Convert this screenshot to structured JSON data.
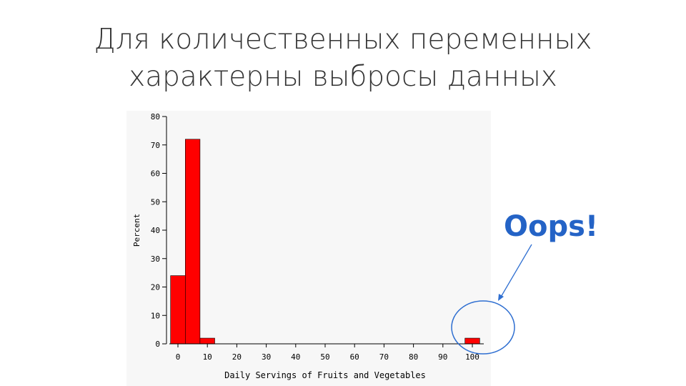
{
  "slide": {
    "title_line1": "Для количественных переменных",
    "title_line2": "характерны выбросы данных"
  },
  "callout": {
    "text": "Oops!",
    "color": "#2463c6"
  },
  "chart_data": {
    "type": "bar",
    "xlabel": "Daily Servings of Fruits and Vegetables",
    "ylabel": "Percent",
    "xlim": [
      -5,
      105
    ],
    "ylim": [
      0,
      80
    ],
    "x_ticks": [
      0,
      10,
      20,
      30,
      40,
      50,
      60,
      70,
      80,
      90,
      100
    ],
    "y_ticks": [
      0,
      10,
      20,
      30,
      40,
      50,
      60,
      70,
      80
    ],
    "bin_width": 5,
    "bars": [
      {
        "x_start": -2.5,
        "x_end": 2.5,
        "value": 24
      },
      {
        "x_start": 2.5,
        "x_end": 7.5,
        "value": 72
      },
      {
        "x_start": 7.5,
        "x_end": 12.5,
        "value": 2
      },
      {
        "x_start": 97.5,
        "x_end": 102.5,
        "value": 2
      }
    ],
    "bar_color": "#ff0000",
    "grid": false,
    "annotation": "outlier circled near x=100"
  }
}
